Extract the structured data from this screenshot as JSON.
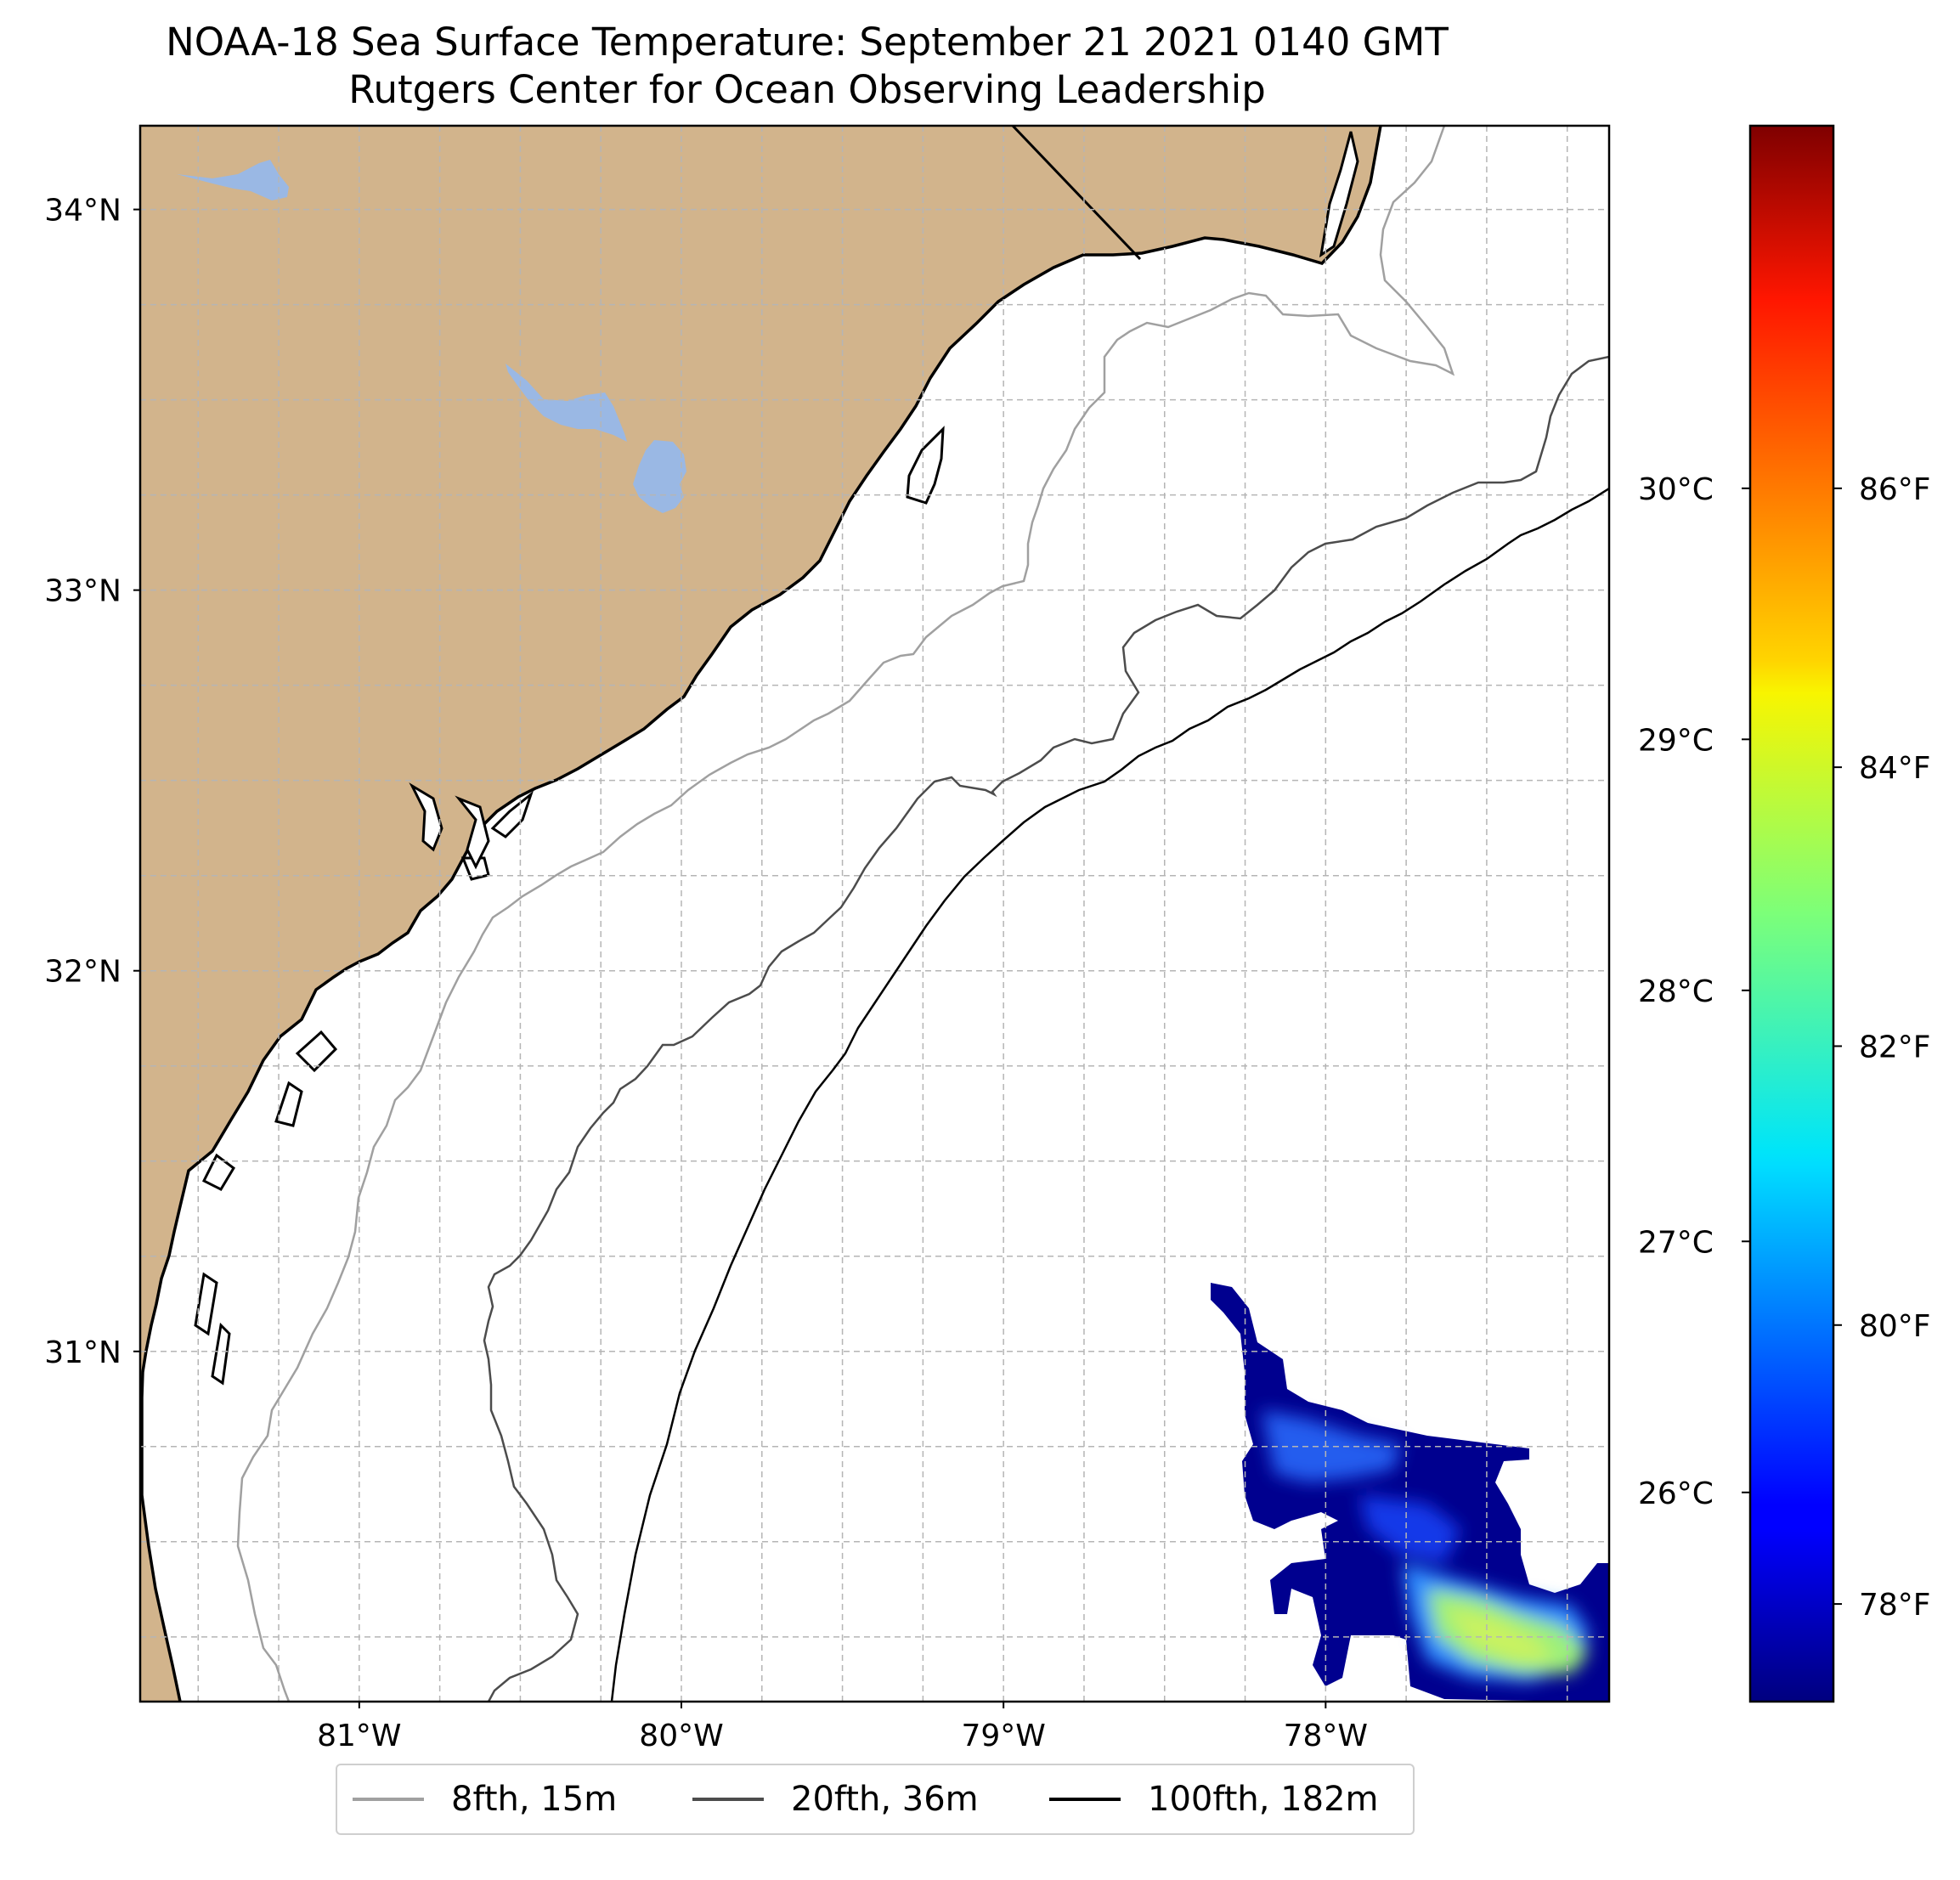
{
  "title": {
    "line1": "NOAA-18 Sea Surface Temperature: September 21 2021 0140 GMT",
    "line2": "Rutgers Center for Ocean Observing Leadership"
  },
  "map": {
    "lon_range": [
      -81.68,
      -77.12
    ],
    "lat_range": [
      30.08,
      34.22
    ],
    "land_color": "#d2b48c",
    "water_body_color": "#9ab8e4",
    "gridlines": "dashed",
    "lon_ticks": [
      {
        "value": -81,
        "label": "81°W"
      },
      {
        "value": -80,
        "label": "80°W"
      },
      {
        "value": -79,
        "label": "79°W"
      },
      {
        "value": -78,
        "label": "78°W"
      }
    ],
    "lat_ticks": [
      {
        "value": 34,
        "label": "34°N"
      },
      {
        "value": 33,
        "label": "33°N"
      },
      {
        "value": 32,
        "label": "32°N"
      },
      {
        "value": 31,
        "label": "31°N"
      }
    ]
  },
  "colorbar": {
    "colormap": "jet",
    "range_f": [
      77.3,
      88.6
    ],
    "celsius_ticks": [
      {
        "value": 26,
        "label": "26°C"
      },
      {
        "value": 27,
        "label": "27°C"
      },
      {
        "value": 28,
        "label": "28°C"
      },
      {
        "value": 29,
        "label": "29°C"
      },
      {
        "value": 30,
        "label": "30°C"
      }
    ],
    "fahrenheit_ticks": [
      {
        "value": 78,
        "label": "78°F"
      },
      {
        "value": 80,
        "label": "80°F"
      },
      {
        "value": 82,
        "label": "82°F"
      },
      {
        "value": 84,
        "label": "84°F"
      },
      {
        "value": 86,
        "label": "86°F"
      }
    ]
  },
  "legend": {
    "items": [
      {
        "label": "8fth, 15m",
        "color": "#a0a0a0"
      },
      {
        "label": "20fth, 36m",
        "color": "#4c4c4c"
      },
      {
        "label": "100fth, 182m",
        "color": "#000000"
      }
    ]
  }
}
